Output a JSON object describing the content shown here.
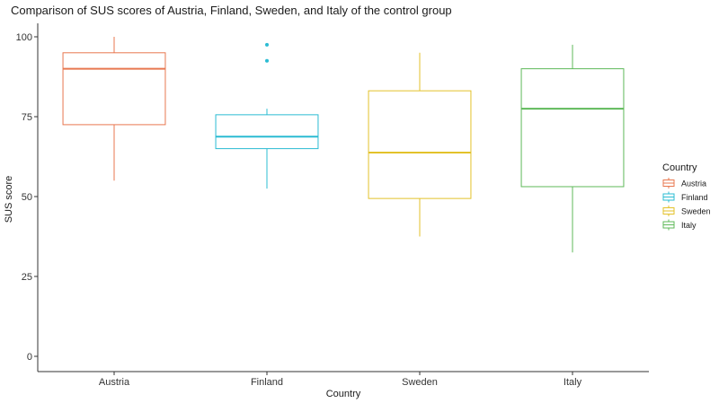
{
  "chart_data": {
    "type": "boxplot",
    "title": "Comparison of SUS scores of Austria, Finland, Sweden, and Italy of the control group",
    "xlabel": "Country",
    "ylabel": "SUS score",
    "ylim": [
      0,
      100
    ],
    "yticks": [
      0,
      25,
      50,
      75,
      100
    ],
    "categories": [
      "Austria",
      "Finland",
      "Sweden",
      "Italy"
    ],
    "legend": {
      "title": "Country",
      "placement": "right"
    },
    "grid": false,
    "series": [
      {
        "name": "Austria",
        "color": "#e8774f",
        "min": 55,
        "q1": 72.5,
        "median": 90,
        "q3": 95,
        "max": 100,
        "outliers": []
      },
      {
        "name": "Finland",
        "color": "#2bbcd3",
        "min": 52.5,
        "q1": 65,
        "median": 68.75,
        "q3": 75.6,
        "max": 77.5,
        "outliers": [
          92.5,
          97.5
        ]
      },
      {
        "name": "Sweden",
        "color": "#e3c22a",
        "min": 37.5,
        "q1": 49.4,
        "median": 63.75,
        "q3": 83.1,
        "max": 95,
        "outliers": []
      },
      {
        "name": "Italy",
        "color": "#5fb95a",
        "min": 32.5,
        "q1": 53.1,
        "median": 77.5,
        "q3": 90,
        "max": 97.5,
        "outliers": []
      }
    ]
  }
}
